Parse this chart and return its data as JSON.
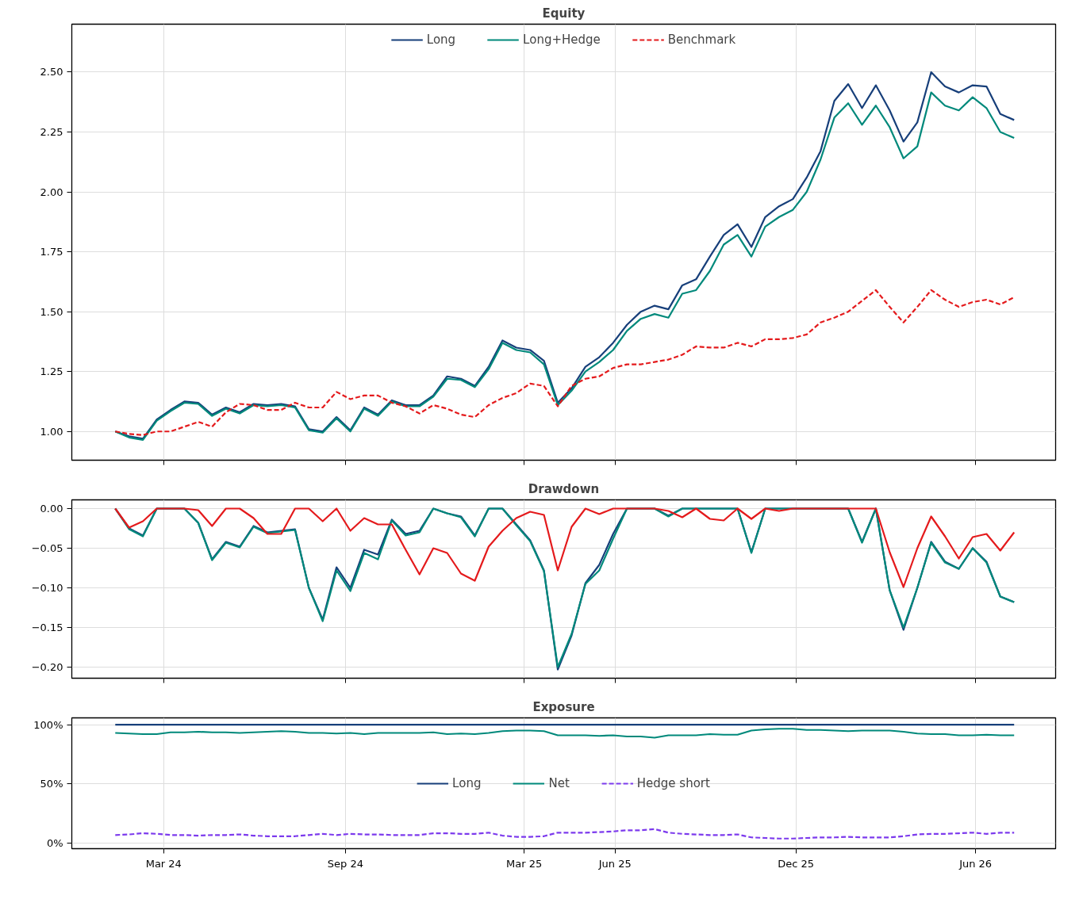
{
  "chart_data": [
    {
      "type": "line",
      "title": "Equity",
      "legend": "top",
      "grid": true,
      "tick_labels": "y",
      "x": [
        "2024-01-12",
        "2024-01-26",
        "2024-02-09",
        "2024-02-23",
        "2024-03-08",
        "2024-03-22",
        "2024-04-05",
        "2024-04-19",
        "2024-05-03",
        "2024-05-17",
        "2024-05-31",
        "2024-06-14",
        "2024-06-28",
        "2024-07-12",
        "2024-07-26",
        "2024-08-09",
        "2024-08-23",
        "2024-09-06",
        "2024-09-20",
        "2024-10-04",
        "2024-10-18",
        "2024-11-01",
        "2024-11-15",
        "2024-11-29",
        "2024-12-13",
        "2024-12-27",
        "2025-01-10",
        "2025-01-24",
        "2025-02-07",
        "2025-02-21",
        "2025-03-07",
        "2025-03-21",
        "2025-04-04",
        "2025-04-18",
        "2025-05-02",
        "2025-05-16",
        "2025-05-30",
        "2025-06-13",
        "2025-06-27",
        "2025-07-11",
        "2025-07-25",
        "2025-08-08",
        "2025-08-22",
        "2025-09-05",
        "2025-09-19",
        "2025-10-03",
        "2025-10-17",
        "2025-10-31",
        "2025-11-14",
        "2025-11-28",
        "2025-12-12",
        "2025-12-26",
        "2026-01-09",
        "2026-01-23",
        "2026-02-06",
        "2026-02-20",
        "2026-03-06",
        "2026-03-20",
        "2026-04-03",
        "2026-04-17",
        "2026-05-01",
        "2026-05-15",
        "2026-05-29",
        "2026-06-12",
        "2026-06-26",
        "2026-07-10"
      ],
      "xlim": [
        "2023-11-29",
        "2026-08-21"
      ],
      "xticks": [
        {
          "value": "2024-03-01",
          "label": null
        },
        {
          "value": "2024-09-01",
          "label": null
        },
        {
          "value": "2025-03-01",
          "label": null
        },
        {
          "value": "2025-06-01",
          "label": null
        },
        {
          "value": "2025-12-01",
          "label": null
        },
        {
          "value": "2026-06-01",
          "label": null
        }
      ],
      "ylim": [
        0.88,
        2.7
      ],
      "yticks": [
        {
          "value": 1.0,
          "label": "1.00"
        },
        {
          "value": 1.25,
          "label": "1.25"
        },
        {
          "value": 1.5,
          "label": "1.50"
        },
        {
          "value": 1.75,
          "label": "1.75"
        },
        {
          "value": 2.0,
          "label": "2.00"
        },
        {
          "value": 2.25,
          "label": "2.25"
        },
        {
          "value": 2.5,
          "label": "2.50"
        }
      ],
      "series": [
        {
          "name": "Long",
          "color": "#173f7a",
          "values": [
            1.0,
            0.98,
            0.97,
            1.05,
            1.09,
            1.125,
            1.12,
            1.07,
            1.1,
            1.08,
            1.115,
            1.11,
            1.115,
            1.105,
            1.01,
            1.0,
            1.06,
            1.005,
            1.1,
            1.07,
            1.13,
            1.11,
            1.11,
            1.15,
            1.23,
            1.22,
            1.19,
            1.27,
            1.38,
            1.35,
            1.34,
            1.295,
            1.12,
            1.18,
            1.27,
            1.31,
            1.37,
            1.445,
            1.5,
            1.525,
            1.51,
            1.61,
            1.635,
            1.73,
            1.82,
            1.865,
            1.77,
            1.895,
            1.94,
            1.97,
            2.06,
            2.17,
            2.38,
            2.45,
            2.35,
            2.445,
            2.34,
            2.21,
            2.29,
            2.5,
            2.44,
            2.415,
            2.445,
            2.44,
            2.325,
            2.3
          ]
        },
        {
          "name": "Long+Hedge",
          "color": "#00897b",
          "values": [
            1.0,
            0.975,
            0.965,
            1.045,
            1.085,
            1.12,
            1.115,
            1.065,
            1.095,
            1.075,
            1.11,
            1.105,
            1.11,
            1.1,
            1.005,
            0.995,
            1.055,
            1.0,
            1.095,
            1.065,
            1.125,
            1.105,
            1.105,
            1.145,
            1.22,
            1.215,
            1.185,
            1.26,
            1.37,
            1.34,
            1.33,
            1.28,
            1.11,
            1.17,
            1.25,
            1.29,
            1.34,
            1.42,
            1.47,
            1.49,
            1.475,
            1.575,
            1.59,
            1.67,
            1.78,
            1.82,
            1.73,
            1.855,
            1.895,
            1.925,
            2.0,
            2.135,
            2.31,
            2.37,
            2.28,
            2.36,
            2.27,
            2.14,
            2.19,
            2.415,
            2.36,
            2.34,
            2.395,
            2.35,
            2.25,
            2.225
          ]
        },
        {
          "name": "Benchmark",
          "color": "#e41a1c",
          "line_style": "dashed",
          "values": [
            1.0,
            0.99,
            0.985,
            1.0,
            1.0,
            1.02,
            1.04,
            1.02,
            1.08,
            1.115,
            1.11,
            1.09,
            1.09,
            1.12,
            1.1,
            1.1,
            1.165,
            1.135,
            1.15,
            1.15,
            1.12,
            1.105,
            1.075,
            1.11,
            1.095,
            1.07,
            1.06,
            1.11,
            1.14,
            1.16,
            1.2,
            1.19,
            1.105,
            1.19,
            1.22,
            1.23,
            1.265,
            1.28,
            1.28,
            1.29,
            1.3,
            1.32,
            1.355,
            1.35,
            1.35,
            1.37,
            1.355,
            1.385,
            1.385,
            1.39,
            1.405,
            1.455,
            1.475,
            1.5,
            1.545,
            1.59,
            1.52,
            1.455,
            1.52,
            1.59,
            1.55,
            1.52,
            1.54,
            1.55,
            1.53,
            1.56
          ]
        }
      ]
    },
    {
      "type": "line",
      "title": "Drawdown",
      "grid": true,
      "tick_labels": "y",
      "x": [
        "2024-01-12",
        "2024-01-26",
        "2024-02-09",
        "2024-02-23",
        "2024-03-08",
        "2024-03-22",
        "2024-04-05",
        "2024-04-19",
        "2024-05-03",
        "2024-05-17",
        "2024-05-31",
        "2024-06-14",
        "2024-06-28",
        "2024-07-12",
        "2024-07-26",
        "2024-08-09",
        "2024-08-23",
        "2024-09-06",
        "2024-09-20",
        "2024-10-04",
        "2024-10-18",
        "2024-11-01",
        "2024-11-15",
        "2024-11-29",
        "2024-12-13",
        "2024-12-27",
        "2025-01-10",
        "2025-01-24",
        "2025-02-07",
        "2025-02-21",
        "2025-03-07",
        "2025-03-21",
        "2025-04-04",
        "2025-04-18",
        "2025-05-02",
        "2025-05-16",
        "2025-05-30",
        "2025-06-13",
        "2025-06-27",
        "2025-07-11",
        "2025-07-25",
        "2025-08-08",
        "2025-08-22",
        "2025-09-05",
        "2025-09-19",
        "2025-10-03",
        "2025-10-17",
        "2025-10-31",
        "2025-11-14",
        "2025-11-28",
        "2025-12-12",
        "2025-12-26",
        "2026-01-09",
        "2026-01-23",
        "2026-02-06",
        "2026-02-20",
        "2026-03-06",
        "2026-03-20",
        "2026-04-03",
        "2026-04-17",
        "2026-05-01",
        "2026-05-15",
        "2026-05-29",
        "2026-06-12",
        "2026-06-26",
        "2026-07-10"
      ],
      "xlim": [
        "2023-11-29",
        "2026-08-21"
      ],
      "xticks": [
        {
          "value": "2024-03-01",
          "label": null
        },
        {
          "value": "2024-09-01",
          "label": null
        },
        {
          "value": "2025-03-01",
          "label": null
        },
        {
          "value": "2025-06-01",
          "label": null
        },
        {
          "value": "2025-12-01",
          "label": null
        },
        {
          "value": "2026-06-01",
          "label": null
        }
      ],
      "ylim": [
        -0.214,
        0.011
      ],
      "yticks": [
        {
          "value": -0.2,
          "label": "−0.20"
        },
        {
          "value": -0.15,
          "label": "−0.15"
        },
        {
          "value": -0.1,
          "label": "−0.10"
        },
        {
          "value": -0.05,
          "label": "−0.05"
        },
        {
          "value": 0,
          "label": "0.00"
        }
      ],
      "series": [
        {
          "color": "#173f7a",
          "values": [
            0,
            -0.025,
            -0.034,
            0,
            0,
            0,
            -0.018,
            -0.064,
            -0.042,
            -0.048,
            -0.022,
            -0.03,
            -0.028,
            -0.026,
            -0.1,
            -0.14,
            -0.074,
            -0.1,
            -0.052,
            -0.058,
            -0.014,
            -0.032,
            -0.028,
            0,
            -0.006,
            -0.01,
            -0.034,
            0,
            0,
            -0.02,
            -0.04,
            -0.078,
            -0.203,
            -0.16,
            -0.094,
            -0.071,
            -0.032,
            0,
            0,
            0,
            -0.009,
            0,
            0,
            0,
            0,
            0,
            -0.055,
            0,
            0,
            0,
            0,
            0,
            0,
            0,
            -0.042,
            0,
            -0.103,
            -0.153,
            -0.1,
            -0.042,
            -0.067,
            -0.076,
            -0.05,
            -0.067,
            -0.111,
            -0.118
          ]
        },
        {
          "color": "#00897b",
          "values": [
            0,
            -0.026,
            -0.035,
            0,
            0,
            0,
            -0.018,
            -0.065,
            -0.043,
            -0.049,
            -0.023,
            -0.031,
            -0.029,
            -0.027,
            -0.1,
            -0.142,
            -0.078,
            -0.104,
            -0.056,
            -0.064,
            -0.015,
            -0.034,
            -0.03,
            0,
            -0.006,
            -0.011,
            -0.035,
            0,
            0,
            -0.021,
            -0.041,
            -0.079,
            -0.2,
            -0.158,
            -0.095,
            -0.078,
            -0.038,
            0,
            0,
            0,
            -0.01,
            0,
            0,
            0,
            0,
            0,
            -0.056,
            0,
            0,
            0,
            0,
            0,
            0,
            0,
            -0.043,
            0,
            -0.103,
            -0.15,
            -0.1,
            -0.043,
            -0.068,
            -0.076,
            -0.05,
            -0.068,
            -0.111,
            -0.118
          ]
        },
        {
          "color": "#e41a1c",
          "values": [
            0,
            -0.024,
            -0.016,
            0,
            0,
            0,
            -0.002,
            -0.022,
            0,
            0,
            -0.012,
            -0.032,
            -0.032,
            0,
            0,
            -0.016,
            0,
            -0.028,
            -0.012,
            -0.02,
            -0.02,
            -0.052,
            -0.083,
            -0.05,
            -0.056,
            -0.082,
            -0.091,
            -0.048,
            -0.028,
            -0.012,
            -0.004,
            -0.008,
            -0.078,
            -0.023,
            0,
            -0.007,
            0,
            0,
            0,
            0,
            -0.003,
            -0.011,
            0,
            -0.013,
            -0.015,
            0,
            -0.013,
            0,
            -0.003,
            0,
            0,
            0,
            0,
            0,
            0,
            0,
            -0.055,
            -0.099,
            -0.05,
            -0.01,
            -0.035,
            -0.063,
            -0.036,
            -0.032,
            -0.053,
            -0.03
          ]
        }
      ]
    },
    {
      "type": "line",
      "title": "Exposure",
      "legend": "center",
      "grid": true,
      "x": [
        "2024-01-12",
        "2024-01-26",
        "2024-02-09",
        "2024-02-23",
        "2024-03-08",
        "2024-03-22",
        "2024-04-05",
        "2024-04-19",
        "2024-05-03",
        "2024-05-17",
        "2024-05-31",
        "2024-06-14",
        "2024-06-28",
        "2024-07-12",
        "2024-07-26",
        "2024-08-09",
        "2024-08-23",
        "2024-09-06",
        "2024-09-20",
        "2024-10-04",
        "2024-10-18",
        "2024-11-01",
        "2024-11-15",
        "2024-11-29",
        "2024-12-13",
        "2024-12-27",
        "2025-01-10",
        "2025-01-24",
        "2025-02-07",
        "2025-02-21",
        "2025-03-07",
        "2025-03-21",
        "2025-04-04",
        "2025-04-18",
        "2025-05-02",
        "2025-05-16",
        "2025-05-30",
        "2025-06-13",
        "2025-06-27",
        "2025-07-11",
        "2025-07-25",
        "2025-08-08",
        "2025-08-22",
        "2025-09-05",
        "2025-09-19",
        "2025-10-03",
        "2025-10-17",
        "2025-10-31",
        "2025-11-14",
        "2025-11-28",
        "2025-12-12",
        "2025-12-26",
        "2026-01-09",
        "2026-01-23",
        "2026-02-06",
        "2026-02-20",
        "2026-03-06",
        "2026-03-20",
        "2026-04-03",
        "2026-04-17",
        "2026-05-01",
        "2026-05-15",
        "2026-05-29",
        "2026-06-12",
        "2026-06-26",
        "2026-07-10"
      ],
      "xlim": [
        "2023-11-29",
        "2026-08-21"
      ],
      "xticks": [
        {
          "value": "2024-03-01",
          "label": "Mar 24"
        },
        {
          "value": "2024-09-01",
          "label": "Sep 24"
        },
        {
          "value": "2025-03-01",
          "label": "Mar 25"
        },
        {
          "value": "2025-06-01",
          "label": "Jun 25"
        },
        {
          "value": "2025-12-01",
          "label": "Dec 25"
        },
        {
          "value": "2026-06-01",
          "label": "Jun 26"
        }
      ],
      "ylim": [
        -4.5,
        105.7
      ],
      "yticks": [
        {
          "value": 0,
          "label": "0%"
        },
        {
          "value": 50,
          "label": "50%"
        },
        {
          "value": 100,
          "label": "100%"
        }
      ],
      "series": [
        {
          "name": "Long",
          "color": "#173f7a",
          "values": [
            100,
            100,
            100,
            100,
            100,
            100,
            100,
            100,
            100,
            100,
            100,
            100,
            100,
            100,
            100,
            100,
            100,
            100,
            100,
            100,
            100,
            100,
            100,
            100,
            100,
            100,
            100,
            100,
            100,
            100,
            100,
            100,
            100,
            100,
            100,
            100,
            100,
            100,
            100,
            100,
            100,
            100,
            100,
            100,
            100,
            100,
            100,
            100,
            100,
            100,
            100,
            100,
            100,
            100,
            100,
            100,
            100,
            100,
            100,
            100,
            100,
            100,
            100,
            100,
            100,
            100
          ]
        },
        {
          "name": "Net",
          "color": "#00897b",
          "values": [
            93,
            92.5,
            92,
            92,
            93.5,
            93.5,
            94,
            93.5,
            93.5,
            93,
            93.5,
            94,
            94.5,
            94,
            93,
            93,
            92.5,
            93,
            92,
            93,
            93,
            93,
            93,
            93.5,
            92,
            92.5,
            92,
            93,
            94.5,
            95,
            95,
            94.5,
            91,
            91,
            91,
            90.5,
            91,
            90,
            90,
            89,
            91,
            91,
            91,
            92,
            91.5,
            91.5,
            95,
            96,
            96.5,
            96.5,
            95.5,
            95.5,
            95,
            94.5,
            95,
            95,
            95,
            94,
            92.5,
            92,
            92,
            91,
            91,
            91.5,
            91,
            91
          ]
        },
        {
          "name": "Hedge short",
          "color": "#7c3aed",
          "line_style": "dashed",
          "values": [
            7,
            7.5,
            8.5,
            8,
            7,
            7,
            6.5,
            7,
            7,
            7.5,
            6.5,
            6,
            6,
            6,
            7,
            8,
            7,
            8,
            7.5,
            7.5,
            7,
            7,
            7,
            8.5,
            8.5,
            8,
            8,
            9,
            6.5,
            5.5,
            5.5,
            6,
            9,
            9,
            9,
            9.5,
            10,
            11,
            11,
            12,
            9,
            8,
            7.5,
            7,
            7,
            7.5,
            5,
            4.5,
            4,
            4,
            4.5,
            5,
            5,
            5.5,
            5,
            5,
            5,
            6,
            7.5,
            8,
            8,
            8.5,
            9,
            8,
            9,
            9
          ]
        }
      ]
    }
  ]
}
